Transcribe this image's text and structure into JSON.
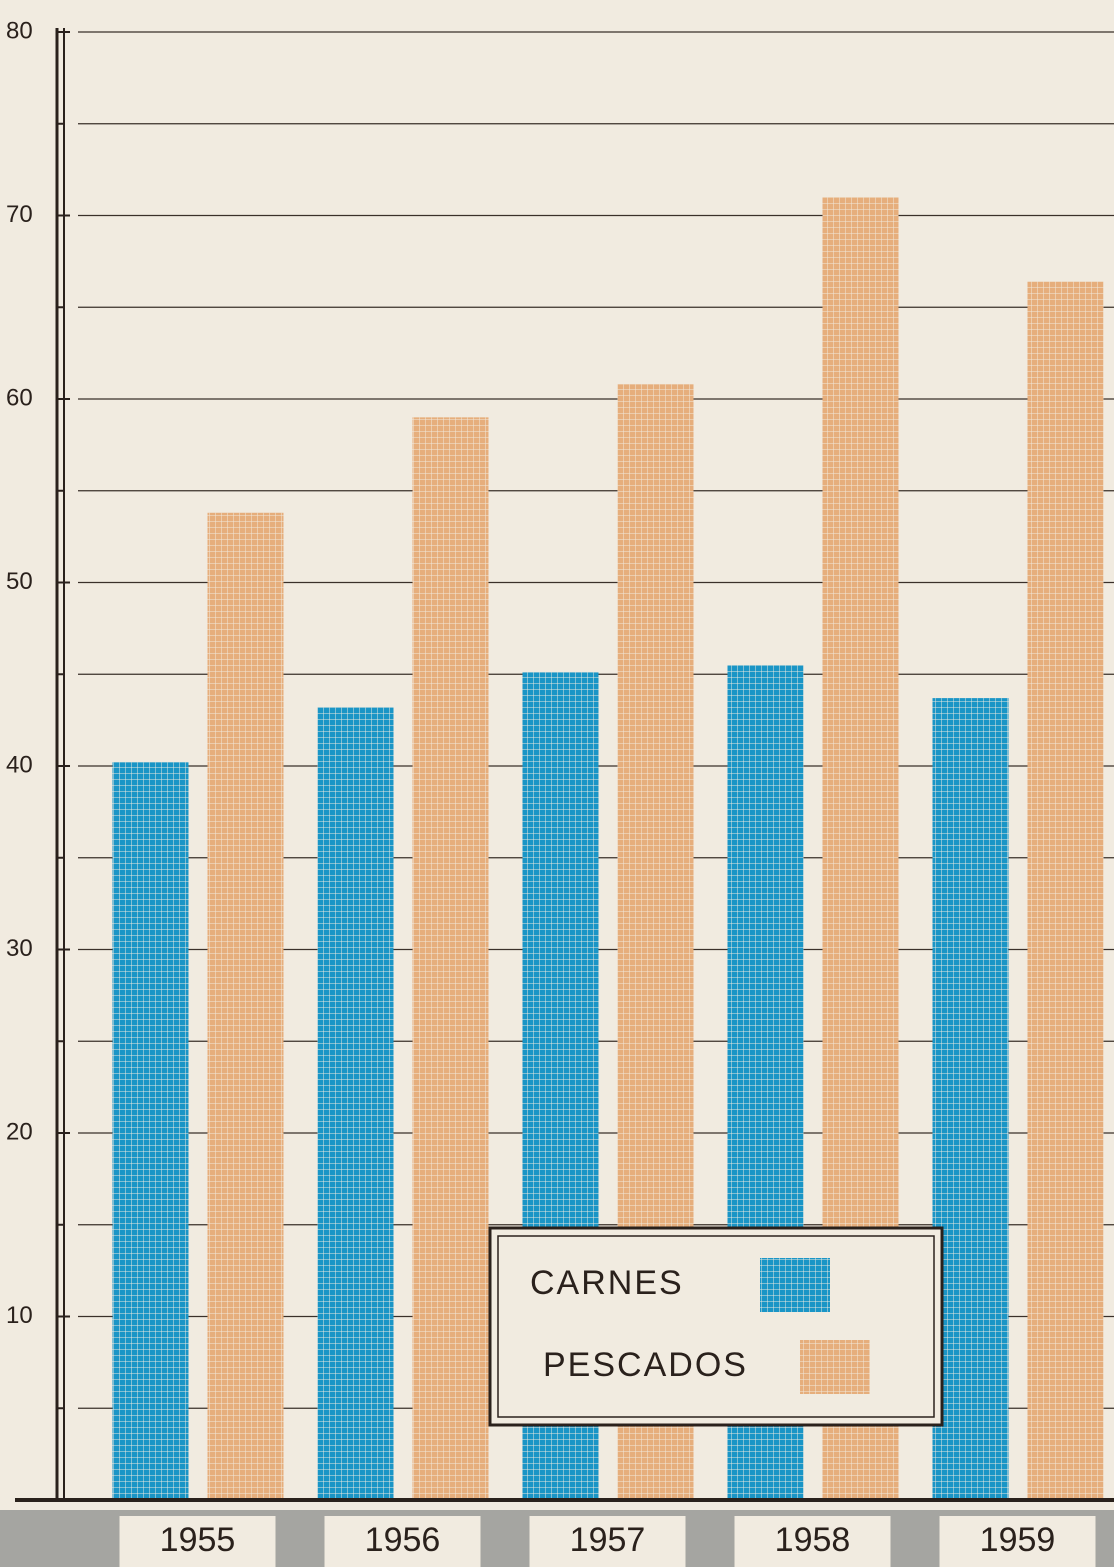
{
  "chart_data": {
    "type": "bar",
    "categories": [
      "1955",
      "1956",
      "1957",
      "1958",
      "1959"
    ],
    "series": [
      {
        "name": "CARNES",
        "color": "#1a95c6",
        "values": [
          40.2,
          43.2,
          45.1,
          45.5,
          43.7
        ]
      },
      {
        "name": "PESCADOS",
        "color": "#e6ae7c",
        "values": [
          53.8,
          59.0,
          60.8,
          71.0,
          66.4
        ]
      }
    ],
    "ylim": [
      0,
      80
    ],
    "yticks": [
      10,
      20,
      30,
      40,
      50,
      60,
      70,
      80
    ],
    "minor_yticks": [
      5,
      15,
      25,
      35,
      45,
      55,
      65,
      75
    ],
    "grid": true,
    "legend": "bottom-center"
  }
}
